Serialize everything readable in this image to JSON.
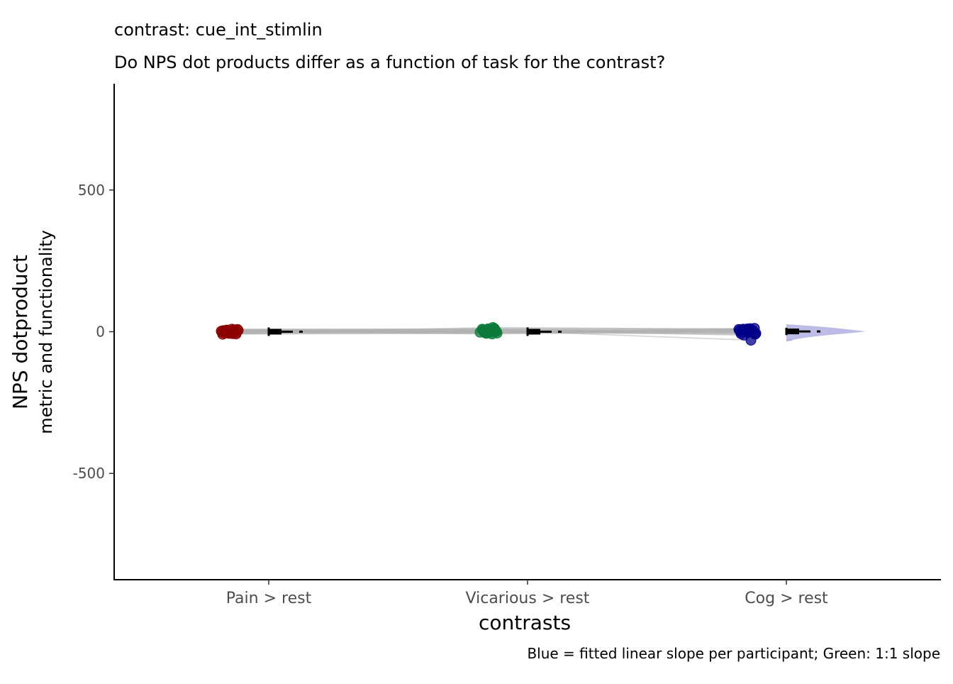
{
  "chart_data": {
    "type": "scatter",
    "title": "contrast:  cue_int_stimlin",
    "subtitle": "Do NPS dot products differ as a function of task for the contrast?",
    "xlabel": "contrasts",
    "ylabel_lines": [
      "NPS dotproduct",
      "metric and functionality"
    ],
    "caption": "Blue = fitted linear slope per participant; Green: 1:1 slope",
    "categories": [
      "Pain > rest",
      "Vicarious > rest",
      "Cog > rest"
    ],
    "ylim": [
      -875,
      875
    ],
    "yticks": [
      -500,
      0,
      500
    ],
    "ytick_labels": [
      "-500",
      "0",
      "500"
    ],
    "grid": false,
    "legend": "none",
    "series": [
      {
        "category": "Pain > rest",
        "color": "#8b0000",
        "points": [
          2,
          -3,
          5,
          -6,
          8,
          0,
          -2,
          4,
          -8,
          6,
          1,
          -4,
          3,
          -1,
          7,
          -5,
          0,
          2,
          -7,
          4,
          9,
          -9,
          1,
          -2
        ]
      },
      {
        "category": "Vicarious > rest",
        "color": "#0b7a3b",
        "points": [
          3,
          -2,
          7,
          -5,
          10,
          1,
          -3,
          4,
          -6,
          8,
          0,
          12,
          -4,
          5,
          -1,
          15,
          2,
          -8,
          6,
          -2,
          9,
          4
        ]
      },
      {
        "category": "Cog > rest",
        "color": "#000088",
        "points": [
          4,
          -3,
          8,
          10,
          -6,
          2,
          -9,
          6,
          12,
          0,
          -4,
          7,
          3,
          -12,
          5,
          9,
          -2,
          1,
          -30,
          6,
          11,
          -7,
          4,
          0
        ]
      }
    ],
    "summary": [
      {
        "category": "Pain > rest",
        "mean": 0,
        "error": 15
      },
      {
        "category": "Vicarious > rest",
        "mean": 0,
        "error": 15
      },
      {
        "category": "Cog > rest",
        "mean": 1,
        "error": 13
      }
    ],
    "colors": {
      "connecting_lines": "#b0b0b0",
      "half_violin": "#9fa0dc",
      "summary_marks": "#000000"
    }
  }
}
